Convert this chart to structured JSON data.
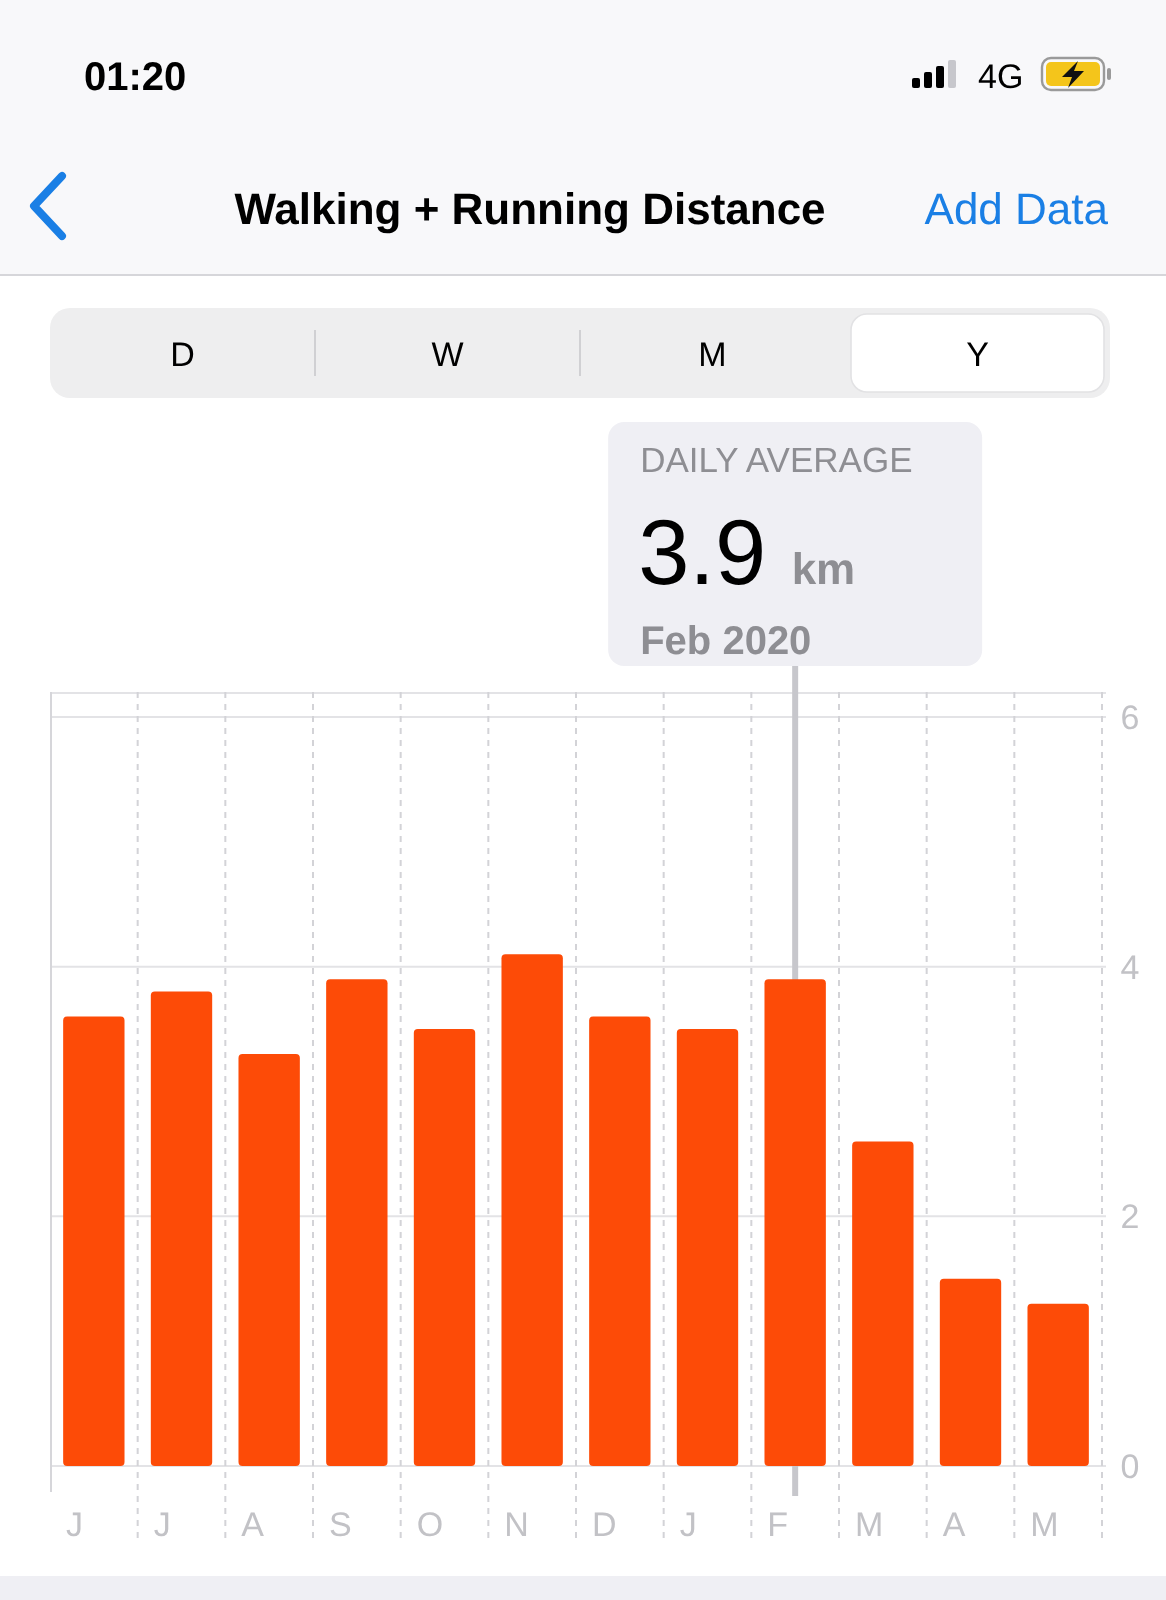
{
  "chart_data": {
    "type": "bar",
    "title": "Walking + Running Distance",
    "categories": [
      "J",
      "J",
      "A",
      "S",
      "O",
      "N",
      "D",
      "J",
      "F",
      "M",
      "A",
      "M"
    ],
    "values": [
      3.6,
      3.8,
      3.3,
      3.9,
      3.5,
      4.1,
      3.6,
      3.5,
      3.9,
      2.6,
      1.5,
      1.3
    ],
    "color": "#fd4b07",
    "ylim": [
      0,
      6.2
    ],
    "yticks": [
      0,
      2,
      4,
      6
    ],
    "grid": true,
    "ref_lines": [
      {
        "axis": "x",
        "value": "F",
        "color": "#c7c7cc"
      }
    ],
    "annotations": [
      "01:20",
      "4G",
      "Add Data",
      "D",
      "W",
      "M",
      "Y",
      "DAILY AVERAGE",
      "3.9 km",
      "Feb 2020"
    ]
  }
}
